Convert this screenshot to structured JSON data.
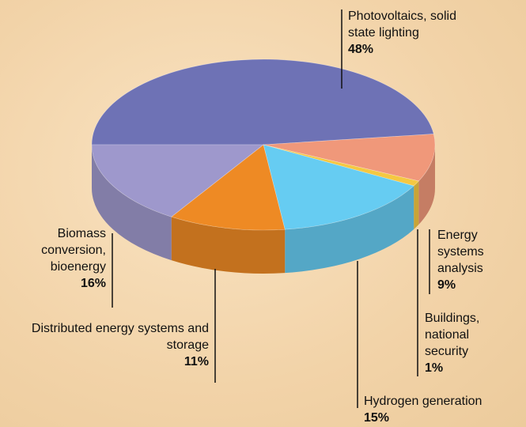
{
  "chart_data": {
    "type": "pie",
    "categories": [
      "Photovoltaics, solid state lighting",
      "Energy systems analysis",
      "Buildings, national security",
      "Hydrogen generation",
      "Distributed energy systems and storage",
      "Biomass conversion, bioenergy"
    ],
    "values": [
      48,
      9,
      1,
      15,
      11,
      16
    ],
    "value_labels": [
      "48%",
      "9%",
      "1%",
      "15%",
      "11%",
      "16%"
    ],
    "colors": [
      "#6e72b5",
      "#f0987a",
      "#f5c842",
      "#66ccf2",
      "#ee8a24",
      "#9e98cc"
    ]
  }
}
